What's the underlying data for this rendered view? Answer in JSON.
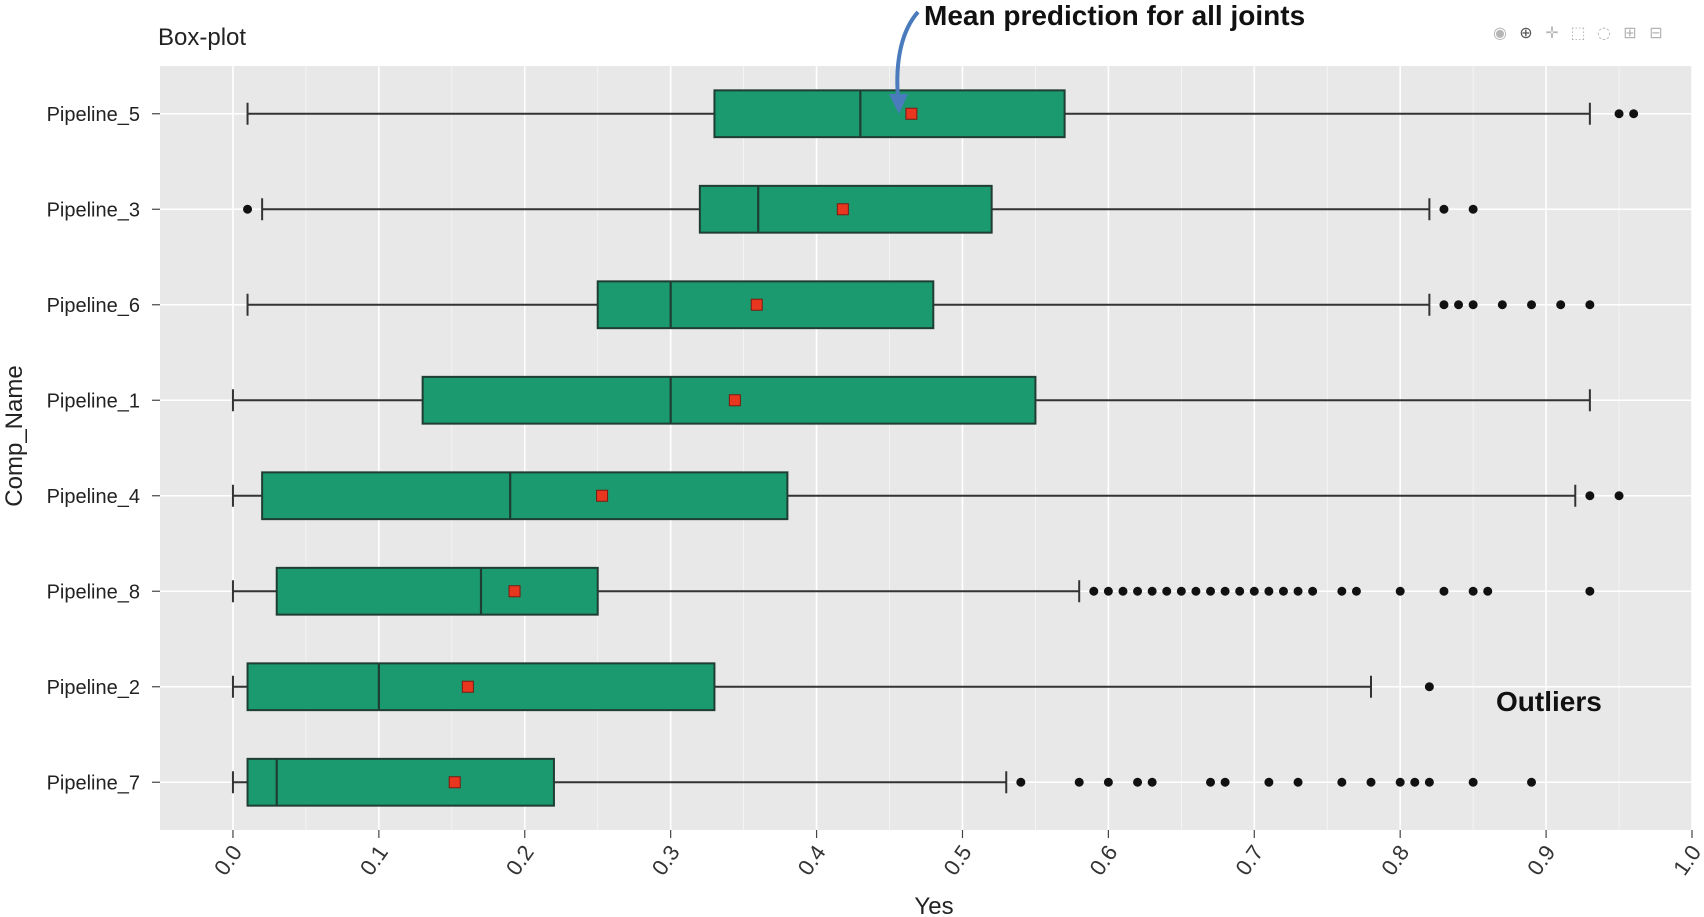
{
  "title": "Box-plot",
  "annotations": {
    "mean": "Mean prediction for all joints",
    "outliers": "Outliers"
  },
  "toolbar": [
    {
      "name": "camera-icon",
      "glyph": "◉",
      "active": false
    },
    {
      "name": "zoom-icon",
      "glyph": "⊕",
      "active": true
    },
    {
      "name": "pan-icon",
      "glyph": "✛",
      "active": false
    },
    {
      "name": "box-select-icon",
      "glyph": "⬚",
      "active": false
    },
    {
      "name": "lasso-icon",
      "glyph": "◌",
      "active": false
    },
    {
      "name": "zoom-in-icon",
      "glyph": "⊞",
      "active": false
    },
    {
      "name": "zoom-out-icon",
      "glyph": "⊟",
      "active": false
    }
  ],
  "chart_data": {
    "type": "box",
    "orientation": "horizontal",
    "title": "Box-plot",
    "xlabel": "Yes",
    "ylabel": "Comp_Name",
    "xlim": [
      -0.05,
      1.0
    ],
    "xticks": [
      "0.0",
      "0.1",
      "0.2",
      "0.3",
      "0.4",
      "0.5",
      "0.6",
      "0.7",
      "0.8",
      "0.9",
      "1.0"
    ],
    "grid": true,
    "colors": {
      "box": "#1a9a6e",
      "mean": "#e8361f",
      "panel": "#e8e8e8",
      "grid": "#ffffff"
    },
    "series": [
      {
        "name": "Pipeline_5",
        "whisker_low": 0.01,
        "q1": 0.33,
        "median": 0.43,
        "q3": 0.57,
        "whisker_high": 0.93,
        "mean": 0.465,
        "outliers": [
          0.95,
          0.96
        ]
      },
      {
        "name": "Pipeline_3",
        "whisker_low": 0.02,
        "q1": 0.32,
        "median": 0.36,
        "q3": 0.52,
        "whisker_high": 0.82,
        "mean": 0.418,
        "outliers": [
          0.01,
          0.83,
          0.85
        ]
      },
      {
        "name": "Pipeline_6",
        "whisker_low": 0.01,
        "q1": 0.25,
        "median": 0.3,
        "q3": 0.48,
        "whisker_high": 0.82,
        "mean": 0.359,
        "outliers": [
          0.83,
          0.84,
          0.85,
          0.87,
          0.89,
          0.91,
          0.93
        ]
      },
      {
        "name": "Pipeline_1",
        "whisker_low": 0.0,
        "q1": 0.13,
        "median": 0.3,
        "q3": 0.55,
        "whisker_high": 0.93,
        "mean": 0.344,
        "outliers": []
      },
      {
        "name": "Pipeline_4",
        "whisker_low": 0.0,
        "q1": 0.02,
        "median": 0.19,
        "q3": 0.38,
        "whisker_high": 0.92,
        "mean": 0.253,
        "outliers": [
          0.93,
          0.95
        ]
      },
      {
        "name": "Pipeline_8",
        "whisker_low": 0.0,
        "q1": 0.03,
        "median": 0.17,
        "q3": 0.25,
        "whisker_high": 0.58,
        "mean": 0.193,
        "outliers": [
          0.59,
          0.6,
          0.61,
          0.62,
          0.63,
          0.64,
          0.65,
          0.66,
          0.67,
          0.68,
          0.69,
          0.7,
          0.71,
          0.72,
          0.73,
          0.74,
          0.76,
          0.77,
          0.8,
          0.83,
          0.85,
          0.86,
          0.93
        ]
      },
      {
        "name": "Pipeline_2",
        "whisker_low": 0.0,
        "q1": 0.01,
        "median": 0.1,
        "q3": 0.33,
        "whisker_high": 0.78,
        "mean": 0.161,
        "outliers": [
          0.82
        ]
      },
      {
        "name": "Pipeline_7",
        "whisker_low": 0.0,
        "q1": 0.01,
        "median": 0.03,
        "q3": 0.22,
        "whisker_high": 0.53,
        "mean": 0.152,
        "outliers": [
          0.54,
          0.58,
          0.6,
          0.62,
          0.63,
          0.67,
          0.68,
          0.71,
          0.73,
          0.76,
          0.78,
          0.8,
          0.81,
          0.82,
          0.85,
          0.89
        ]
      }
    ]
  }
}
